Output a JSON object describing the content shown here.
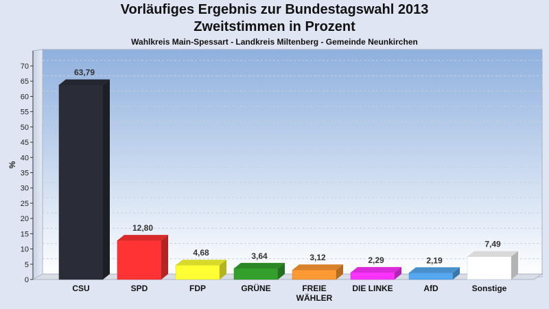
{
  "chart_data": {
    "type": "bar",
    "title": "Vorläufiges Ergebnis zur Bundestagswahl 2013",
    "subtitle_line1": "Zweitstimmen in Prozent",
    "subtitle_line2": "Wahlkreis Main-Spessart - Landkreis Miltenberg - Gemeinde Neunkirchen",
    "ylabel": "%",
    "xlabel": "",
    "ylim": [
      0,
      70
    ],
    "ytick_step": 5,
    "grid": true,
    "legend": "none",
    "categories": [
      "CSU",
      "SPD",
      "FDP",
      "GRÜNE",
      "FREIE WÄHLER",
      "DIE LINKE",
      "AfD",
      "Sonstige"
    ],
    "category_lines": [
      [
        "CSU"
      ],
      [
        "SPD"
      ],
      [
        "FDP"
      ],
      [
        "GRÜNE"
      ],
      [
        "FREIE",
        "WÄHLER"
      ],
      [
        "DIE LINKE"
      ],
      [
        "AfD"
      ],
      [
        "Sonstige"
      ]
    ],
    "values": [
      63.79,
      12.8,
      4.68,
      3.64,
      3.12,
      2.29,
      2.19,
      7.49
    ],
    "value_labels": [
      "63,79",
      "12,80",
      "4,68",
      "3,64",
      "3,12",
      "2,29",
      "2,19",
      "7,49"
    ],
    "colors": [
      "#2a2d38",
      "#ff3333",
      "#ffff33",
      "#33a02c",
      "#ff9933",
      "#ff33ff",
      "#55a8f0",
      "#ffffff"
    ]
  }
}
